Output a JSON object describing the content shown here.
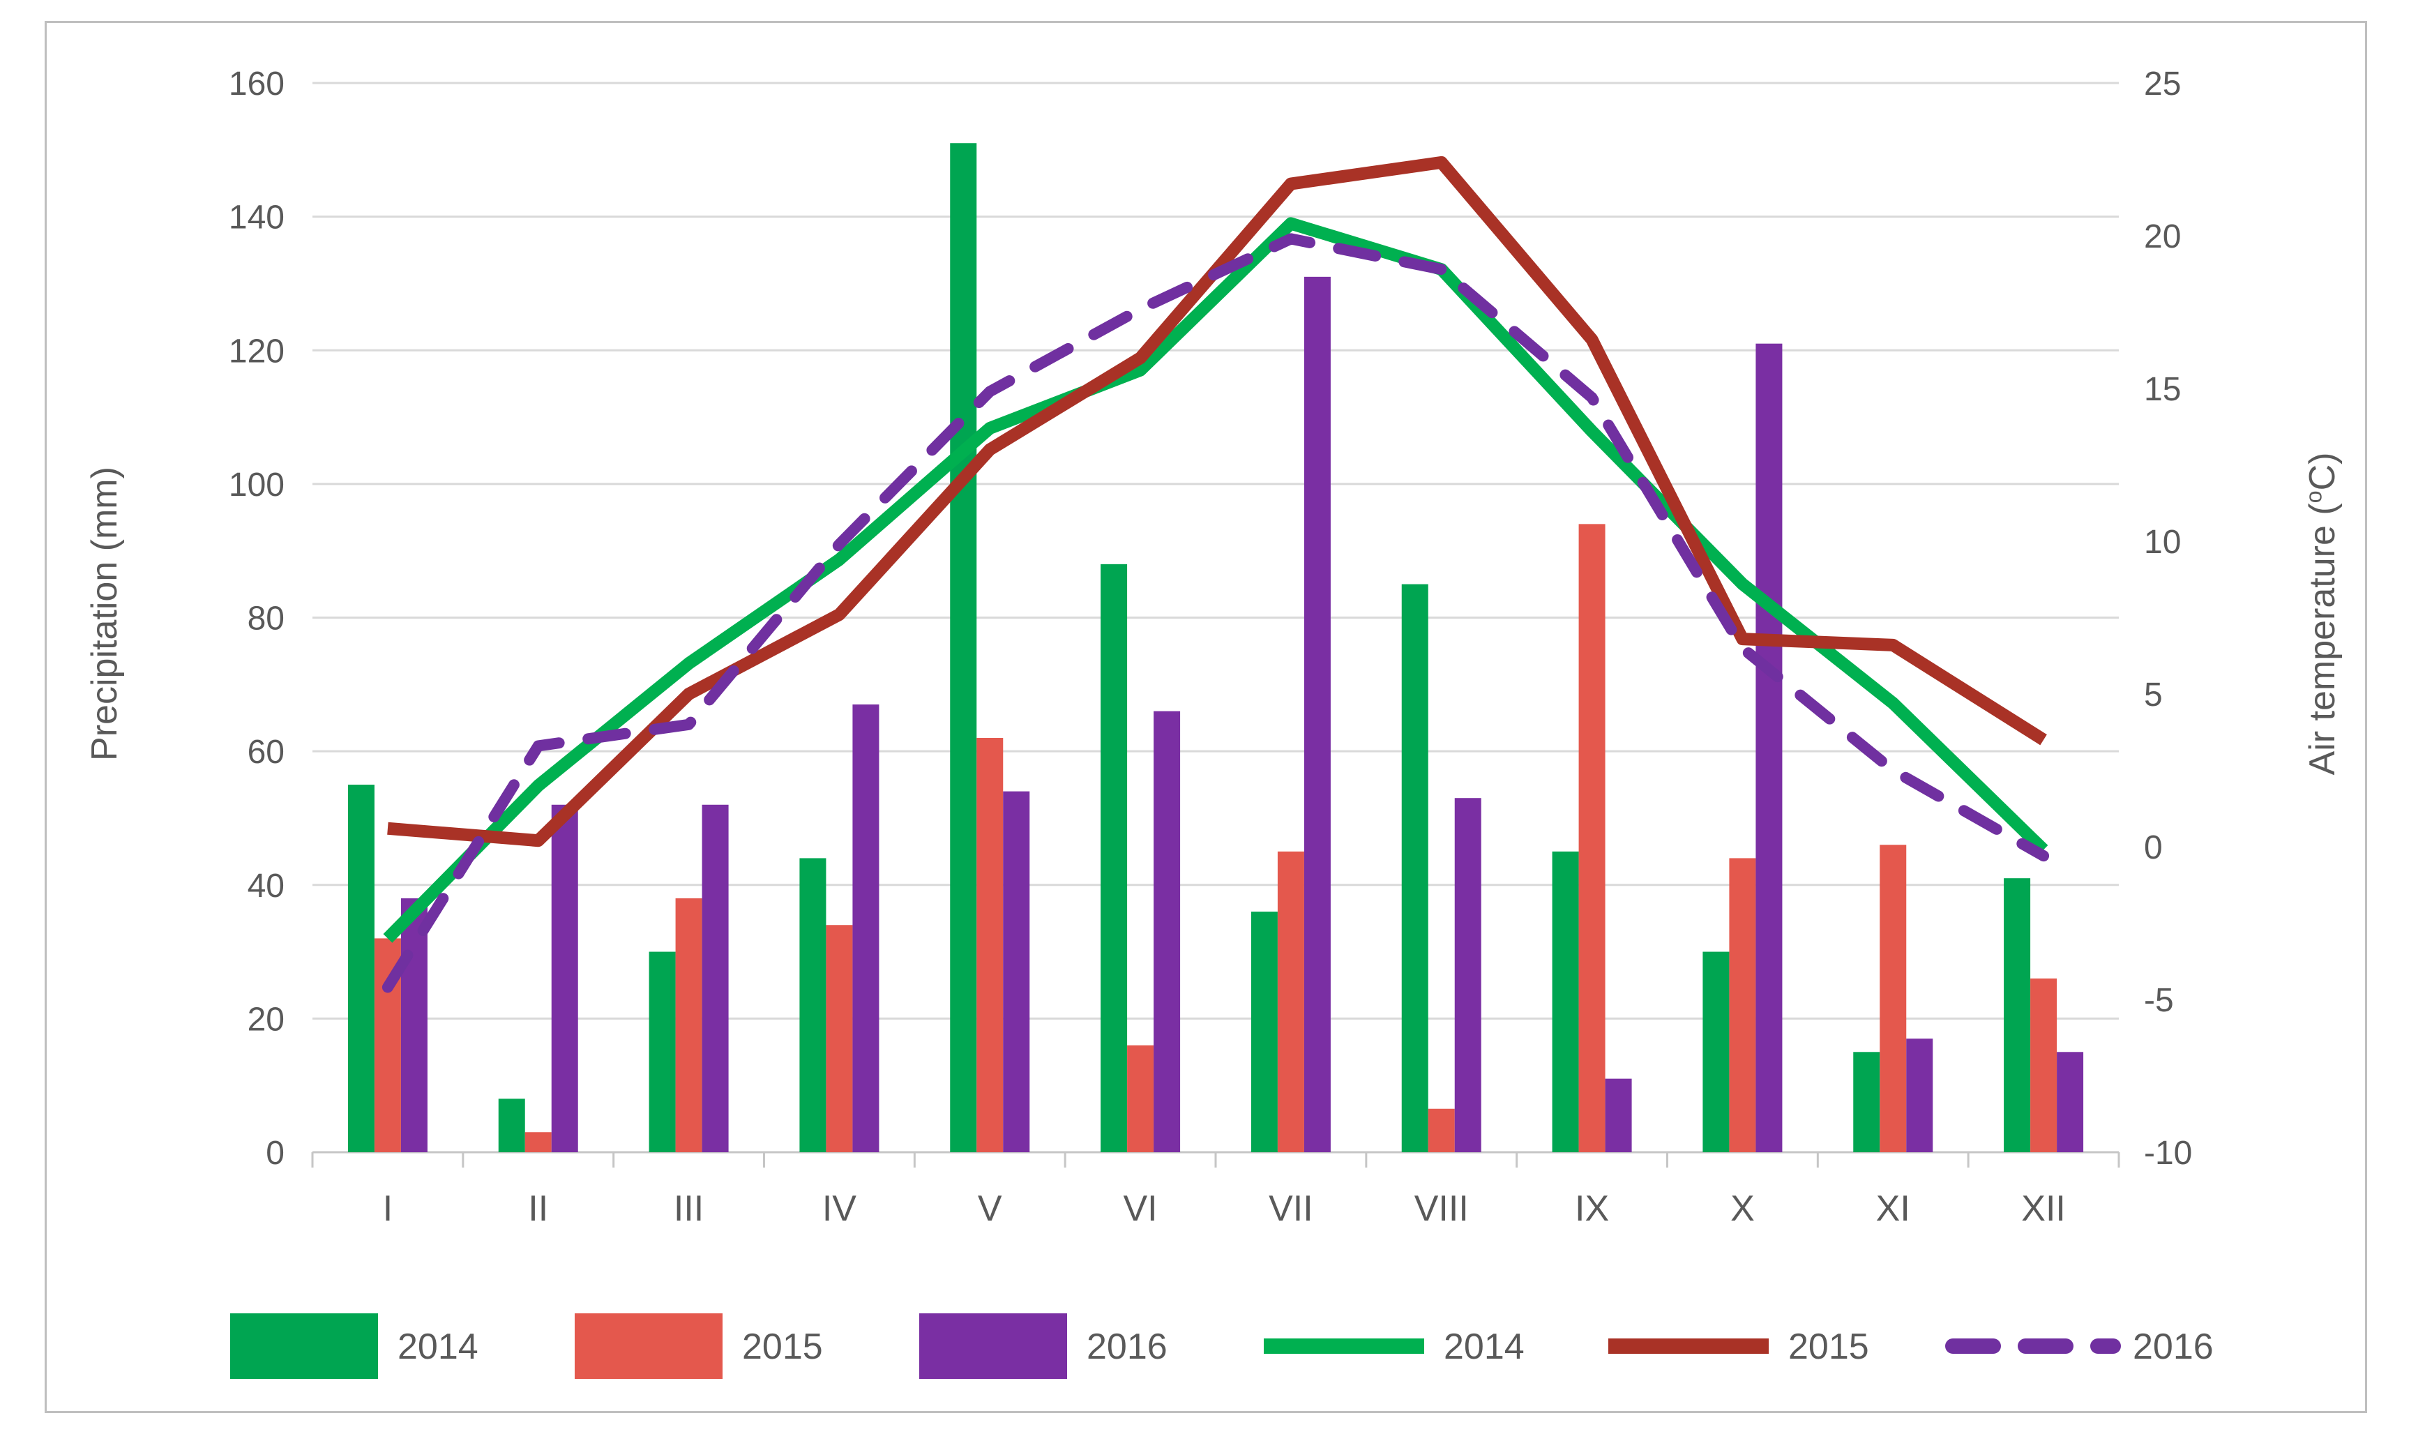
{
  "chart_data": {
    "type": "combo-bar-line",
    "title": "",
    "categories": [
      "I",
      "II",
      "III",
      "IV",
      "V",
      "VI",
      "VII",
      "VIII",
      "IX",
      "X",
      "XI",
      "XII"
    ],
    "left_axis": {
      "label": "Precipitation (mm)",
      "min": 0,
      "max": 160,
      "step": 20
    },
    "right_axis": {
      "label": "Air temperature (°C)",
      "min": -10,
      "max": 25,
      "step": 5
    },
    "grid": true,
    "legend_position": "bottom",
    "bar_series": [
      {
        "name": "2014",
        "color": "#00A551",
        "axis": "left",
        "values": [
          55,
          8,
          30,
          44,
          151,
          88,
          36,
          85,
          45,
          30,
          15,
          41
        ]
      },
      {
        "name": "2015",
        "color": "#E4584D",
        "axis": "left",
        "values": [
          32,
          3,
          38,
          34,
          62,
          16,
          45,
          6.5,
          94,
          44,
          46,
          26
        ]
      },
      {
        "name": "2016",
        "color": "#7A2FA3",
        "axis": "left",
        "values": [
          38,
          52,
          52,
          67,
          54,
          66,
          131,
          53,
          11,
          121,
          17,
          15
        ]
      }
    ],
    "line_series": [
      {
        "name": "2014",
        "color": "#00B050",
        "dashed": false,
        "axis": "right",
        "values": [
          -3.0,
          2.0,
          6.0,
          9.4,
          13.7,
          15.6,
          20.4,
          18.9,
          13.6,
          8.6,
          4.7,
          -0.1
        ]
      },
      {
        "name": "2015",
        "color": "#A93226",
        "dashed": false,
        "axis": "right",
        "values": [
          0.6,
          0.2,
          5.0,
          7.6,
          13.0,
          16.0,
          21.7,
          22.4,
          16.6,
          6.8,
          6.6,
          3.5
        ]
      },
      {
        "name": "2016",
        "color": "#7030A0",
        "dashed": true,
        "axis": "right",
        "values": [
          -4.6,
          3.3,
          4.0,
          9.9,
          14.9,
          17.6,
          19.9,
          18.9,
          14.7,
          6.5,
          2.5,
          -0.3
        ]
      }
    ]
  },
  "colors": {
    "gridline": "#D9D9D9",
    "axis_line": "#C6C6C6",
    "text": "#595959",
    "frame_border": "#BFBFBF",
    "background": "#FFFFFF"
  }
}
